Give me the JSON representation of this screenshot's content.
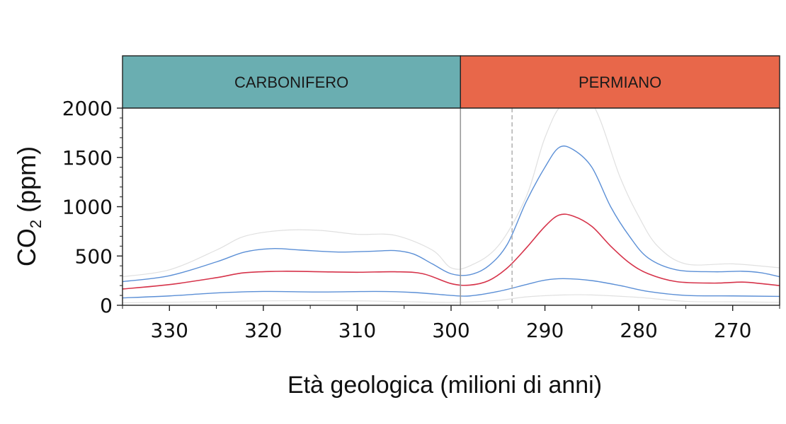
{
  "chart_data": {
    "type": "line",
    "xlabel": "Età geologica (milioni di anni)",
    "ylabel_main": "CO",
    "ylabel_sub": "2",
    "ylabel_unit": " (ppm)",
    "xlim": [
      335,
      265
    ],
    "ylim": [
      0,
      2000
    ],
    "x_ticks": [
      330,
      320,
      310,
      300,
      290,
      280,
      270
    ],
    "y_ticks": [
      0,
      500,
      1000,
      1500,
      2000
    ],
    "periods": [
      {
        "label": "CARBONIFERO",
        "start": 335,
        "end": 299,
        "color": "#6aaeb1"
      },
      {
        "label": "PERMIANO",
        "start": 299,
        "end": 265,
        "color": "#e8674a"
      }
    ],
    "boundary_solid": 299,
    "boundary_dashed": 293.5,
    "grid": false,
    "series": [
      {
        "color": "#e0e0e0",
        "width": 1.2,
        "points": [
          [
            335,
            290
          ],
          [
            330,
            360
          ],
          [
            325,
            560
          ],
          [
            322,
            700
          ],
          [
            318,
            760
          ],
          [
            314,
            760
          ],
          [
            310,
            720
          ],
          [
            306,
            710
          ],
          [
            302,
            560
          ],
          [
            300,
            380
          ],
          [
            298,
            400
          ],
          [
            295,
            600
          ],
          [
            292,
            1100
          ],
          [
            290,
            1700
          ],
          [
            288,
            2050
          ],
          [
            285,
            2050
          ],
          [
            282,
            1300
          ],
          [
            280,
            900
          ],
          [
            278,
            600
          ],
          [
            275,
            420
          ],
          [
            270,
            420
          ],
          [
            265,
            380
          ]
        ]
      },
      {
        "color": "#5b8fd6",
        "width": 1.4,
        "points": [
          [
            335,
            240
          ],
          [
            330,
            300
          ],
          [
            325,
            440
          ],
          [
            322,
            540
          ],
          [
            319,
            575
          ],
          [
            316,
            560
          ],
          [
            312,
            540
          ],
          [
            308,
            550
          ],
          [
            306,
            555
          ],
          [
            304,
            520
          ],
          [
            302,
            420
          ],
          [
            300,
            320
          ],
          [
            298,
            310
          ],
          [
            296,
            400
          ],
          [
            294,
            620
          ],
          [
            292,
            1050
          ],
          [
            290,
            1400
          ],
          [
            288.5,
            1600
          ],
          [
            287,
            1580
          ],
          [
            285,
            1400
          ],
          [
            283,
            1000
          ],
          [
            281,
            700
          ],
          [
            279,
            480
          ],
          [
            276,
            360
          ],
          [
            272,
            340
          ],
          [
            269,
            345
          ],
          [
            267,
            330
          ],
          [
            265,
            290
          ]
        ]
      },
      {
        "color": "#d6334a",
        "width": 1.6,
        "points": [
          [
            335,
            165
          ],
          [
            330,
            210
          ],
          [
            325,
            280
          ],
          [
            322,
            330
          ],
          [
            318,
            345
          ],
          [
            314,
            340
          ],
          [
            310,
            335
          ],
          [
            306,
            340
          ],
          [
            303,
            320
          ],
          [
            300,
            220
          ],
          [
            298,
            205
          ],
          [
            296,
            250
          ],
          [
            294,
            380
          ],
          [
            292,
            580
          ],
          [
            290,
            800
          ],
          [
            288.5,
            915
          ],
          [
            287,
            905
          ],
          [
            285,
            800
          ],
          [
            283,
            600
          ],
          [
            281,
            430
          ],
          [
            279,
            320
          ],
          [
            276,
            240
          ],
          [
            272,
            225
          ],
          [
            269,
            235
          ],
          [
            267,
            220
          ],
          [
            265,
            200
          ]
        ]
      },
      {
        "color": "#5b8fd6",
        "width": 1.4,
        "points": [
          [
            335,
            75
          ],
          [
            330,
            95
          ],
          [
            325,
            125
          ],
          [
            320,
            140
          ],
          [
            314,
            135
          ],
          [
            308,
            140
          ],
          [
            304,
            130
          ],
          [
            300,
            100
          ],
          [
            298,
            95
          ],
          [
            295,
            140
          ],
          [
            292,
            210
          ],
          [
            290,
            255
          ],
          [
            288,
            270
          ],
          [
            285,
            250
          ],
          [
            282,
            200
          ],
          [
            279,
            140
          ],
          [
            275,
            100
          ],
          [
            270,
            95
          ],
          [
            265,
            90
          ]
        ]
      },
      {
        "color": "#e0e0e0",
        "width": 1.2,
        "points": [
          [
            335,
            25
          ],
          [
            330,
            30
          ],
          [
            320,
            45
          ],
          [
            310,
            45
          ],
          [
            300,
            30
          ],
          [
            295,
            50
          ],
          [
            292,
            85
          ],
          [
            288,
            105
          ],
          [
            285,
            105
          ],
          [
            280,
            80
          ],
          [
            275,
            40
          ],
          [
            270,
            35
          ],
          [
            265,
            30
          ]
        ]
      }
    ]
  }
}
